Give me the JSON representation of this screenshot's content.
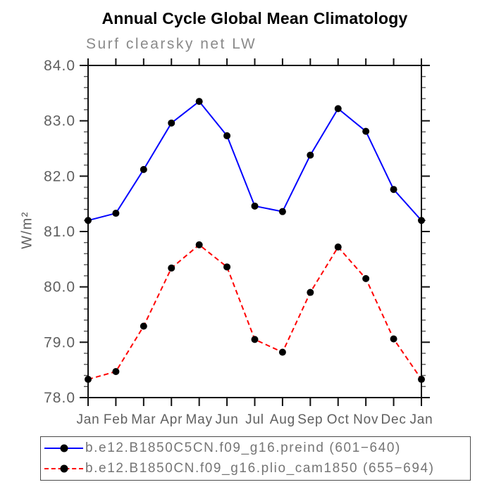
{
  "chart_data": {
    "type": "line",
    "title": "Annual Cycle Global Mean Climatology",
    "subtitle": "Surf clearsky net LW",
    "ylabel": "W/m²",
    "xlabel": "",
    "ylim": [
      78.0,
      84.0
    ],
    "ytick_step": 1.0,
    "yminor_step": 0.2,
    "grid": "off",
    "frame": "box with outward ticks",
    "legend_position": "bottom-left boxed",
    "categories": [
      "Jan",
      "Feb",
      "Mar",
      "Apr",
      "May",
      "Jun",
      "Jul",
      "Aug",
      "Sep",
      "Oct",
      "Nov",
      "Dec",
      "Jan"
    ],
    "series": [
      {
        "name": "b.e12.B1850C5CN.f09_g16.preind (601−640)",
        "color": "#0000ff",
        "line_style": "solid",
        "marker": "filled-circle",
        "marker_color": "#000000",
        "values": [
          81.2,
          81.33,
          82.12,
          82.96,
          83.35,
          82.73,
          81.46,
          81.36,
          82.38,
          83.22,
          82.81,
          81.76,
          81.2
        ]
      },
      {
        "name": "b.e12.B1850CN.f09_g16.plio_cam1850 (655−694)",
        "color": "#ff0000",
        "line_style": "dashed",
        "marker": "filled-circle",
        "marker_color": "#000000",
        "values": [
          78.33,
          78.47,
          79.29,
          80.34,
          80.76,
          80.36,
          79.05,
          78.82,
          79.9,
          80.72,
          80.15,
          79.06,
          78.33
        ]
      }
    ]
  }
}
